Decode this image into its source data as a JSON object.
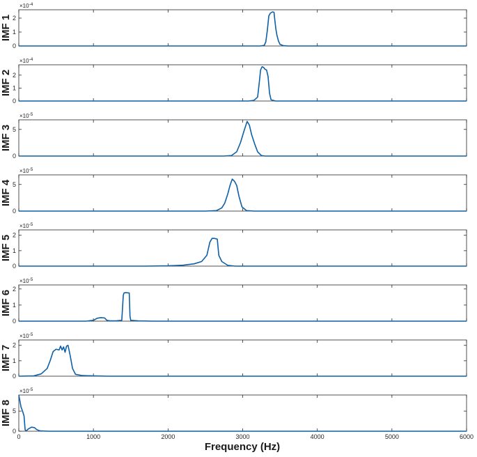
{
  "figure": {
    "xlabel": "Frequency (Hz)"
  },
  "colors": {
    "line": "#0d5fa6",
    "axes": "#262626"
  },
  "chart_data": {
    "type": "line",
    "xlabel": "Frequency (Hz)",
    "xlim": [
      0,
      6000
    ],
    "xticks": [
      0,
      1000,
      2000,
      3000,
      4000,
      5000,
      6000
    ],
    "grid": false,
    "panels": [
      {
        "name": "IMF 1",
        "ylabel": "IMF 1",
        "exponent": "×10⁻⁴",
        "exp_base": "×10",
        "exp_power": "-4",
        "ylim": [
          0,
          2.6
        ],
        "yticks": [
          0,
          1,
          2
        ],
        "series": [
          {
            "x": [
              0,
              3240,
              3290,
              3310,
              3330,
              3350,
              3370,
              3400,
              3420,
              3430,
              3445,
              3460,
              3480,
              3500,
              3540,
              3600,
              6000
            ],
            "y": [
              0,
              0,
              0.05,
              0.3,
              1.1,
              2.15,
              2.35,
              2.45,
              2.42,
              1.9,
              1.2,
              0.75,
              0.35,
              0.12,
              0.03,
              0,
              0
            ]
          }
        ]
      },
      {
        "name": "IMF 2",
        "ylabel": "IMF 2",
        "exponent": "×10⁻⁴",
        "exp_base": "×10",
        "exp_power": "-4",
        "ylim": [
          0,
          2.8
        ],
        "yticks": [
          0,
          1,
          2
        ],
        "series": [
          {
            "x": [
              0,
              3080,
              3150,
              3200,
              3220,
              3240,
              3260,
              3280,
              3300,
              3320,
              3340,
              3360,
              3380,
              3440,
              6000
            ],
            "y": [
              0,
              0,
              0.05,
              0.3,
              1.3,
              2.4,
              2.65,
              2.6,
              2.45,
              2.4,
              1.9,
              0.6,
              0.1,
              0,
              0
            ]
          }
        ]
      },
      {
        "name": "IMF 3",
        "ylabel": "IMF 3",
        "exponent": "×10⁻⁵",
        "exp_base": "×10",
        "exp_power": "-5",
        "ylim": [
          0,
          6.8
        ],
        "yticks": [
          0,
          5
        ],
        "series": [
          {
            "x": [
              0,
              2750,
              2850,
              2920,
              2970,
              3020,
              3060,
              3090,
              3120,
              3160,
              3200,
              3250,
              3300,
              6000
            ],
            "y": [
              0,
              0,
              0.1,
              0.8,
              2.5,
              4.8,
              6.5,
              5.8,
              4.0,
              2.3,
              0.8,
              0.1,
              0,
              0
            ]
          }
        ]
      },
      {
        "name": "IMF 4",
        "ylabel": "IMF 4",
        "exponent": "×10⁻⁵",
        "exp_base": "×10",
        "exp_power": "-5",
        "ylim": [
          0,
          6.8
        ],
        "yticks": [
          0,
          5
        ],
        "series": [
          {
            "x": [
              0,
              2500,
              2650,
              2720,
              2760,
              2800,
              2830,
              2860,
              2890,
              2920,
              2950,
              2990,
              3050,
              3150,
              6000
            ],
            "y": [
              0,
              0,
              0.1,
              0.6,
              1.5,
              3.2,
              4.8,
              6.0,
              5.6,
              4.8,
              2.8,
              0.8,
              0.1,
              0,
              0
            ]
          }
        ]
      },
      {
        "name": "IMF 5",
        "ylabel": "IMF 5",
        "exponent": "×10⁻⁵",
        "exp_base": "×10",
        "exp_power": "-5",
        "ylim": [
          0,
          2.35
        ],
        "yticks": [
          0,
          1,
          2
        ],
        "series": [
          {
            "x": [
              0,
              1700,
              2000,
              2200,
              2350,
              2450,
              2520,
              2560,
              2590,
              2620,
              2660,
              2680,
              2720,
              2800,
              2900,
              6000
            ],
            "y": [
              0,
              0,
              0.02,
              0.06,
              0.15,
              0.3,
              0.7,
              1.55,
              1.8,
              1.8,
              1.75,
              0.7,
              0.3,
              0.05,
              0,
              0
            ]
          }
        ]
      },
      {
        "name": "IMF 6",
        "ylabel": "IMF 6",
        "exponent": "×10⁻⁵",
        "exp_base": "×10",
        "exp_power": "-5",
        "ylim": [
          0,
          2.25
        ],
        "yticks": [
          0,
          1,
          2
        ],
        "series": [
          {
            "x": [
              0,
              900,
              1000,
              1050,
              1100,
              1150,
              1180,
              1220,
              1300,
              1380,
              1400,
              1410,
              1430,
              1480,
              1490,
              1500,
              1600,
              1800,
              6000
            ],
            "y": [
              0,
              0,
              0.05,
              0.18,
              0.22,
              0.2,
              0.05,
              0.02,
              0.02,
              0.05,
              1.6,
              1.75,
              1.77,
              1.75,
              0.3,
              0.05,
              0.02,
              0,
              0
            ]
          }
        ]
      },
      {
        "name": "IMF 7",
        "ylabel": "IMF 7",
        "exponent": "×10⁻⁵",
        "exp_base": "×10",
        "exp_power": "-5",
        "ylim": [
          0,
          2.35
        ],
        "yticks": [
          0,
          1,
          2
        ],
        "series": [
          {
            "x": [
              0,
              200,
              300,
              380,
              420,
              460,
              500,
              540,
              560,
              580,
              600,
              620,
              640,
              660,
              690,
              720,
              760,
              850,
              1000,
              1200,
              6000
            ],
            "y": [
              0,
              0.02,
              0.15,
              0.5,
              1.0,
              1.6,
              1.75,
              1.7,
              1.95,
              1.7,
              1.9,
              1.55,
              1.95,
              2.0,
              1.3,
              0.5,
              0.12,
              0.04,
              0.02,
              0,
              0
            ]
          }
        ]
      },
      {
        "name": "IMF 8",
        "ylabel": "IMF 8",
        "exponent": "×10⁻⁵",
        "exp_base": "×10",
        "exp_power": "-5",
        "ylim": [
          0,
          9
        ],
        "yticks": [
          0,
          5
        ],
        "series": [
          {
            "x": [
              0,
              10,
              30,
              50,
              70,
              85,
              100,
              130,
              170,
              210,
              240,
              280,
              400,
              6000
            ],
            "y": [
              9,
              8.0,
              6.0,
              5.0,
              3.8,
              0.3,
              0.1,
              0.6,
              1.0,
              0.9,
              0.4,
              0.1,
              0,
              0
            ]
          }
        ]
      }
    ]
  }
}
